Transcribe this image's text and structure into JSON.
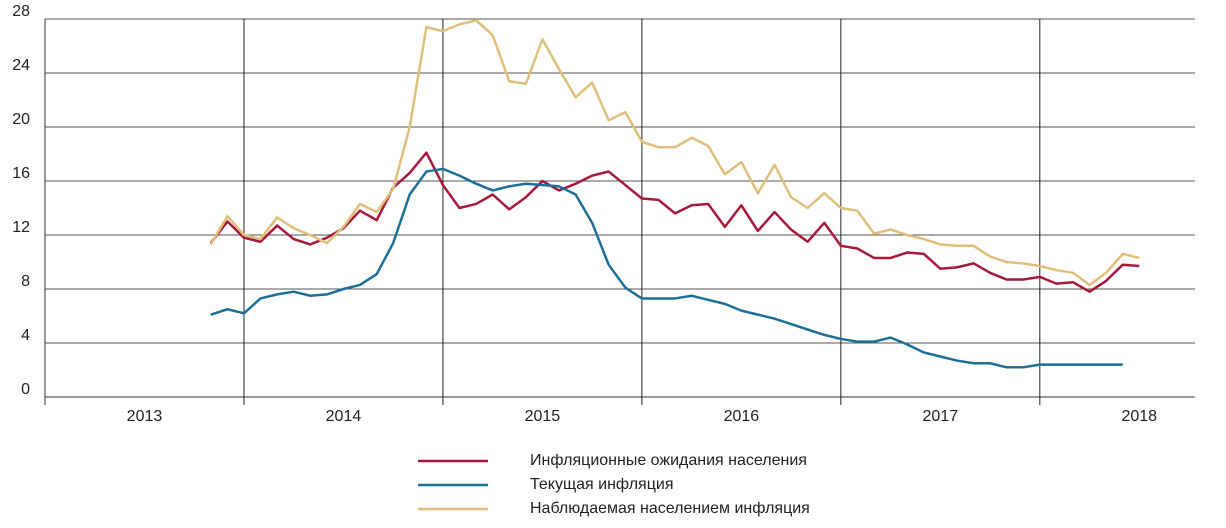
{
  "chart_data": {
    "type": "line",
    "x": [
      2013.833,
      2013.917,
      2014,
      2014.083,
      2014.167,
      2014.25,
      2014.333,
      2014.417,
      2014.5,
      2014.583,
      2014.667,
      2014.75,
      2014.833,
      2014.917,
      2015,
      2015.083,
      2015.167,
      2015.25,
      2015.333,
      2015.417,
      2015.5,
      2015.583,
      2015.667,
      2015.75,
      2015.833,
      2015.917,
      2016,
      2016.083,
      2016.167,
      2016.25,
      2016.333,
      2016.417,
      2016.5,
      2016.583,
      2016.667,
      2016.75,
      2016.833,
      2016.917,
      2017,
      2017.083,
      2017.167,
      2017.25,
      2017.333,
      2017.417,
      2017.5,
      2017.583,
      2017.667,
      2017.75,
      2017.833,
      2017.917,
      2018,
      2018.083,
      2018.167,
      2018.25,
      2018.333,
      2018.417,
      2018.5
    ],
    "series": [
      {
        "name": "Инфляционные ожидания населения",
        "color": "#a6193c",
        "values": [
          11.4,
          13.0,
          11.8,
          11.5,
          12.7,
          11.7,
          11.3,
          11.8,
          12.5,
          13.8,
          13.1,
          15.5,
          16.6,
          18.1,
          15.7,
          14.0,
          14.3,
          15.0,
          13.9,
          14.8,
          16.0,
          15.3,
          15.8,
          16.4,
          16.7,
          15.7,
          14.7,
          14.6,
          13.6,
          14.2,
          14.3,
          12.6,
          14.2,
          12.3,
          13.7,
          12.4,
          11.5,
          12.9,
          11.2,
          11.0,
          10.3,
          10.3,
          10.7,
          10.6,
          9.5,
          9.6,
          9.9,
          9.2,
          8.7,
          8.7,
          8.9,
          8.4,
          8.5,
          7.8,
          8.6,
          9.8,
          9.7
        ]
      },
      {
        "name": "Текущая инфляция",
        "color": "#1e6f98",
        "values": [
          6.1,
          6.5,
          6.2,
          7.3,
          7.6,
          7.8,
          7.5,
          7.6,
          8.0,
          8.3,
          9.1,
          11.4,
          15.0,
          16.7,
          16.9,
          16.4,
          15.8,
          15.3,
          15.6,
          15.8,
          15.7,
          15.6,
          15.0,
          12.9,
          9.8,
          8.1,
          7.3,
          7.3,
          7.3,
          7.5,
          7.2,
          6.9,
          6.4,
          6.1,
          5.8,
          5.4,
          5.0,
          4.6,
          4.3,
          4.1,
          4.1,
          4.4,
          3.9,
          3.3,
          3.0,
          2.7,
          2.5,
          2.5,
          2.2,
          2.2,
          2.4,
          2.4,
          2.4,
          2.4,
          2.4,
          2.4,
          null
        ]
      },
      {
        "name": "Наблюдаемая населением инфляция",
        "color": "#e0bf7a",
        "values": [
          11.3,
          13.4,
          12.0,
          11.7,
          13.3,
          12.5,
          12.0,
          11.4,
          12.6,
          14.3,
          13.7,
          15.4,
          20.0,
          27.4,
          27.1,
          27.6,
          27.9,
          26.8,
          23.4,
          23.2,
          26.5,
          24.3,
          22.2,
          23.3,
          20.5,
          21.1,
          18.9,
          18.5,
          18.5,
          19.2,
          18.6,
          16.5,
          17.4,
          15.1,
          17.2,
          14.8,
          14.0,
          15.1,
          14.0,
          13.8,
          12.1,
          12.4,
          12.0,
          11.7,
          11.3,
          11.2,
          11.2,
          10.4,
          10.0,
          9.9,
          9.7,
          9.4,
          9.2,
          8.3,
          9.2,
          10.6,
          10.3
        ]
      }
    ],
    "xlim": [
      2013,
      2018.78
    ],
    "xticks": [
      {
        "value": 2013.5,
        "label": "2013"
      },
      {
        "value": 2014.5,
        "label": "2014"
      },
      {
        "value": 2015.5,
        "label": "2015"
      },
      {
        "value": 2016.5,
        "label": "2016"
      },
      {
        "value": 2017.5,
        "label": "2017"
      },
      {
        "value": 2018.5,
        "label": "2018"
      }
    ],
    "xgrid": [
      2014,
      2015,
      2016,
      2017,
      2018
    ],
    "ylim": [
      0,
      28
    ],
    "yticks": [
      0,
      4,
      8,
      12,
      16,
      20,
      24,
      28
    ],
    "grid": true
  }
}
